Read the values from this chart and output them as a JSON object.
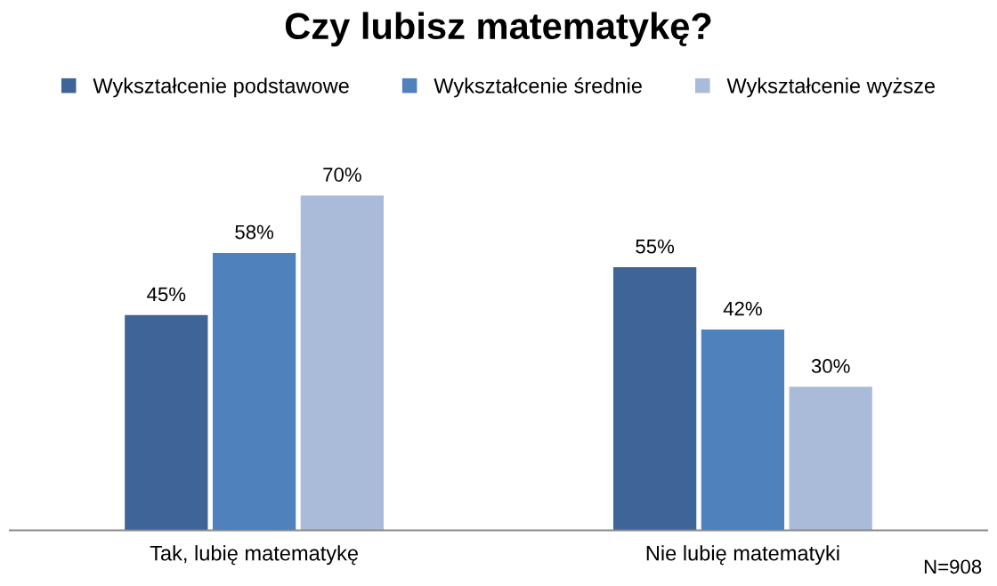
{
  "chart_data": {
    "type": "bar",
    "title": "Czy lubisz matematykę?",
    "categories": [
      "Tak, lubię matematykę",
      "Nie lubię matematyki"
    ],
    "series": [
      {
        "name": "Wykształcenie podstawowe",
        "color": "#3f6497",
        "values": [
          45,
          55
        ],
        "value_labels": [
          "45%",
          "55%"
        ]
      },
      {
        "name": "Wykształcenie średnie",
        "color": "#4f81bd",
        "values": [
          58,
          42
        ],
        "value_labels": [
          "58%",
          "42%"
        ]
      },
      {
        "name": "Wykształcenie wyższe",
        "color": "#a9bbd9",
        "values": [
          70,
          30
        ],
        "value_labels": [
          "70%",
          "30%"
        ]
      }
    ],
    "annotations": [
      "N=908"
    ],
    "legend": "top",
    "grid": false
  }
}
